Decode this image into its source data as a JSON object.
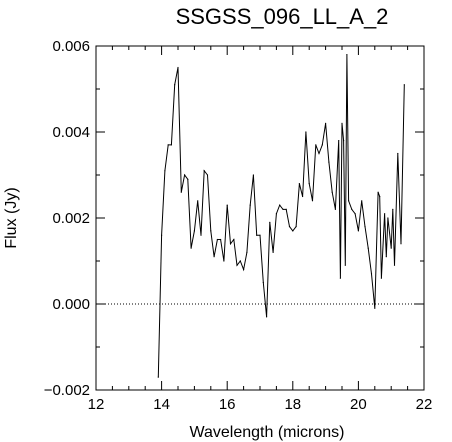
{
  "chart_data": {
    "type": "line",
    "title": "SSGSS_096_LL_A_2",
    "xlabel": "Wavelength (microns)",
    "ylabel": "Flux (Jy)",
    "xlim": [
      12,
      22
    ],
    "ylim": [
      -0.002,
      0.006
    ],
    "xticks": [
      12,
      14,
      16,
      18,
      20,
      22
    ],
    "xtick_labels": [
      "12",
      "14",
      "16",
      "18",
      "20",
      "22"
    ],
    "yticks": [
      -0.002,
      0.0,
      0.002,
      0.004,
      0.006
    ],
    "ytick_labels": [
      "−0.002",
      "0.000",
      "0.002",
      "0.004",
      "0.006"
    ],
    "reference_line": {
      "y": 0.0,
      "style": "dotted"
    },
    "grid": false,
    "series": [
      {
        "x": [
          13.9,
          14.0,
          14.1,
          14.2,
          14.3,
          14.4,
          14.5,
          14.6,
          14.7,
          14.8,
          14.9,
          15.0,
          15.1,
          15.2,
          15.3,
          15.4,
          15.5,
          15.6,
          15.7,
          15.8,
          15.9,
          16.0,
          16.1,
          16.2,
          16.3,
          16.4,
          16.5,
          16.6,
          16.7,
          16.8,
          16.9,
          17.0,
          17.1,
          17.2,
          17.3,
          17.4,
          17.5,
          17.6,
          17.7,
          17.8,
          17.9,
          18.0,
          18.1,
          18.2,
          18.3,
          18.4,
          18.5,
          18.6,
          18.7,
          18.8,
          18.9,
          19.0,
          19.1,
          19.2,
          19.3,
          19.4,
          19.45,
          19.5,
          19.55,
          19.6,
          19.65,
          19.7,
          19.8,
          19.9,
          20.0,
          20.1,
          20.2,
          20.3,
          20.4,
          20.5,
          20.6,
          20.65,
          20.7,
          20.8,
          20.85,
          20.9,
          21.0,
          21.05,
          21.1,
          21.2,
          21.3,
          21.4
        ],
        "y": [
          -0.0017,
          0.0016,
          0.0031,
          0.0037,
          0.0037,
          0.0051,
          0.0055,
          0.0026,
          0.003,
          0.0029,
          0.0013,
          0.0017,
          0.0024,
          0.0016,
          0.0031,
          0.003,
          0.0017,
          0.0011,
          0.0015,
          0.0015,
          0.001,
          0.0023,
          0.0014,
          0.0015,
          0.0009,
          0.001,
          0.0008,
          0.0012,
          0.0023,
          0.003,
          0.0016,
          0.0016,
          0.0005,
          -0.0003,
          0.0019,
          0.0012,
          0.0021,
          0.0023,
          0.0022,
          0.0022,
          0.0018,
          0.0017,
          0.0018,
          0.0028,
          0.0025,
          0.004,
          0.0028,
          0.0024,
          0.0037,
          0.0035,
          0.0037,
          0.0042,
          0.0033,
          0.0026,
          0.0022,
          0.0038,
          0.0006,
          0.0042,
          0.0038,
          0.0009,
          0.0058,
          0.0024,
          0.0022,
          0.0021,
          0.0017,
          0.0024,
          0.0018,
          0.0013,
          0.0007,
          -0.0001,
          0.0026,
          0.0025,
          0.0006,
          0.0021,
          0.0011,
          0.002,
          0.0013,
          0.0022,
          0.0009,
          0.0035,
          0.0014,
          0.0051
        ]
      }
    ]
  }
}
